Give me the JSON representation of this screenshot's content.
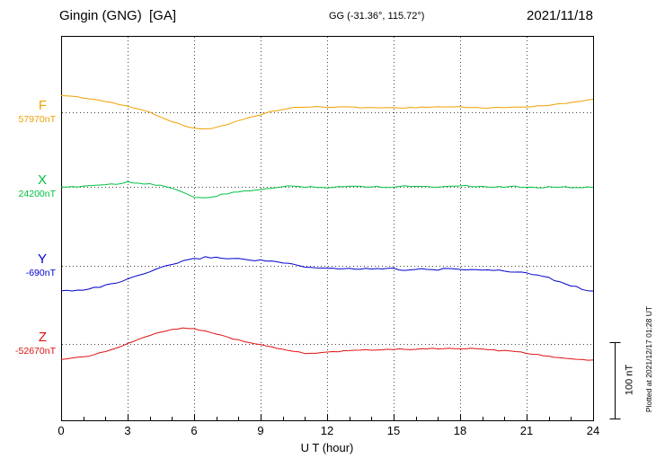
{
  "header": {
    "station": "Gingin (GNG)  [GA]",
    "coords": "GG (-31.36°, 115.72°)",
    "date": "2021/11/18"
  },
  "footer": {
    "xlabel": "U T (hour)"
  },
  "scalebar": {
    "label": "100 nT",
    "nT": 100
  },
  "plotted_at": "Plotted at 2021/12/17 01:28 UT",
  "chart_data": {
    "type": "line",
    "title": "Gingin (GNG) [GA] magnetogram 2021/11/18",
    "xlabel": "U T (hour)",
    "x_range": [
      0,
      24
    ],
    "x_ticks": [
      "0",
      "3",
      "6",
      "9",
      "12",
      "15",
      "18",
      "21",
      "24"
    ],
    "x_step_hours": 0.5,
    "grid": "dotted vertical every 3 h, dotted horizontal at each baseline",
    "scale_bar_nT": 100,
    "series": [
      {
        "name": "F",
        "color": "#f0a000",
        "baseline_label": "57970nT",
        "baseline_nT": 57970,
        "offsets_nT": [
          22,
          21,
          19,
          17,
          14,
          11,
          8,
          4,
          0,
          -6,
          -12,
          -17,
          -21,
          -22,
          -20,
          -16,
          -11,
          -7,
          -3,
          1,
          4,
          6,
          7,
          7,
          7,
          7,
          7,
          6,
          6,
          6,
          6,
          6,
          6,
          7,
          7,
          7,
          7,
          6,
          6,
          6,
          6,
          7,
          7,
          8,
          9,
          11,
          13,
          15,
          17
        ]
      },
      {
        "name": "X",
        "color": "#00c040",
        "baseline_label": "24200nT",
        "baseline_nT": 24200,
        "offsets_nT": [
          -1,
          0,
          1,
          2,
          3,
          4,
          6,
          5,
          4,
          2,
          -2,
          -8,
          -13,
          -15,
          -12,
          -9,
          -7,
          -5,
          -3,
          -2,
          0,
          1,
          0,
          0,
          -1,
          0,
          0,
          1,
          0,
          0,
          0,
          1,
          1,
          0,
          0,
          1,
          2,
          1,
          0,
          0,
          0,
          0,
          0,
          -1,
          0,
          0,
          -1,
          -1,
          -1
        ]
      },
      {
        "name": "Y",
        "color": "#0000d0",
        "baseline_label": "-690nT",
        "baseline_nT": -690,
        "offsets_nT": [
          -33,
          -32,
          -31,
          -29,
          -26,
          -22,
          -18,
          -13,
          -8,
          -3,
          2,
          6,
          9,
          11,
          11,
          10,
          9,
          8,
          7,
          6,
          4,
          1,
          -2,
          -3,
          -3,
          -4,
          -3,
          -4,
          -4,
          -3,
          -4,
          -5,
          -4,
          -4,
          -5,
          -4,
          -4,
          -5,
          -5,
          -6,
          -7,
          -8,
          -9,
          -12,
          -16,
          -21,
          -26,
          -30,
          -33
        ]
      },
      {
        "name": "Z",
        "color": "#e01010",
        "baseline_label": "-52670nT",
        "baseline_nT": -52670,
        "offsets_nT": [
          -20,
          -19,
          -17,
          -14,
          -10,
          -5,
          0,
          6,
          11,
          16,
          19,
          21,
          20,
          17,
          13,
          9,
          5,
          2,
          -1,
          -4,
          -7,
          -10,
          -12,
          -12,
          -11,
          -10,
          -9,
          -8,
          -8,
          -7,
          -7,
          -7,
          -7,
          -6,
          -6,
          -6,
          -6,
          -6,
          -7,
          -8,
          -9,
          -10,
          -12,
          -14,
          -16,
          -18,
          -20,
          -21,
          -21
        ]
      }
    ]
  }
}
